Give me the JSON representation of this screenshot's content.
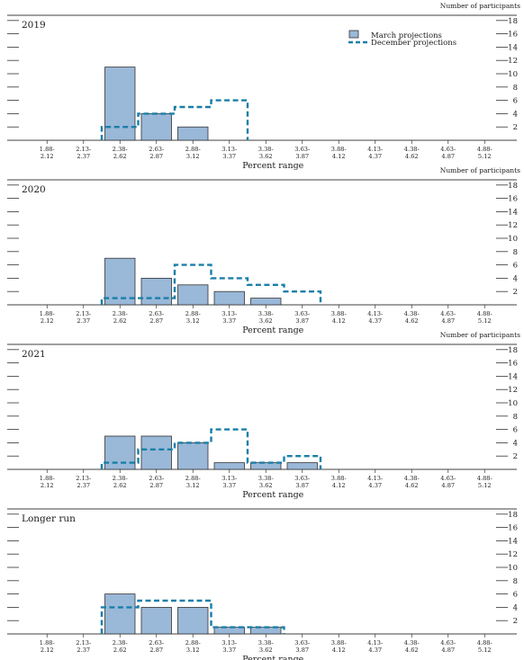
{
  "chart_data": [
    {
      "type": "bar",
      "title": "2019",
      "y_axis_title": "Number of participants",
      "xlabel": "Percent range",
      "categories": [
        "1.88-\n2.12",
        "2.13-\n2.37",
        "2.38-\n2.62",
        "2.63-\n2.87",
        "2.88-\n3.12",
        "3.13-\n3.37",
        "3.38-\n3.62",
        "3.63-\n3.87",
        "3.88-\n4.12",
        "4.13-\n4.37",
        "4.38-\n4.62",
        "4.63-\n4.87",
        "4.88-\n5.12"
      ],
      "series": [
        {
          "name": "March projections",
          "style": "bar",
          "values": [
            0,
            0,
            11,
            4,
            2,
            0,
            0,
            0,
            0,
            0,
            0,
            0,
            0
          ]
        },
        {
          "name": "December projections",
          "style": "dashed-step",
          "values": [
            0,
            0,
            2,
            4,
            5,
            6,
            0,
            0,
            0,
            0,
            0,
            0,
            0
          ]
        }
      ],
      "yticks": [
        2,
        4,
        6,
        8,
        10,
        12,
        14,
        16,
        18
      ],
      "ylim": [
        0,
        19
      ],
      "legend": "top-right",
      "colors": {
        "bar_fill": "#9ab8d8",
        "bar_stroke": "#333333",
        "dashed": "#1a7fa8"
      }
    },
    {
      "type": "bar",
      "title": "2020",
      "y_axis_title": "Number of participants",
      "xlabel": "Percent range",
      "categories": [
        "1.88-\n2.12",
        "2.13-\n2.37",
        "2.38-\n2.62",
        "2.63-\n2.87",
        "2.88-\n3.12",
        "3.13-\n3.37",
        "3.38-\n3.62",
        "3.63-\n3.87",
        "3.88-\n4.12",
        "4.13-\n4.37",
        "4.38-\n4.62",
        "4.63-\n4.87",
        "4.88-\n5.12"
      ],
      "series": [
        {
          "name": "March projections",
          "style": "bar",
          "values": [
            0,
            0,
            7,
            4,
            3,
            2,
            1,
            0,
            0,
            0,
            0,
            0,
            0
          ]
        },
        {
          "name": "December projections",
          "style": "dashed-step",
          "values": [
            0,
            0,
            1,
            1,
            6,
            4,
            3,
            2,
            0,
            0,
            0,
            0,
            0
          ]
        }
      ],
      "yticks": [
        2,
        4,
        6,
        8,
        10,
        12,
        14,
        16,
        18
      ],
      "ylim": [
        0,
        19
      ],
      "colors": {
        "bar_fill": "#9ab8d8",
        "bar_stroke": "#333333",
        "dashed": "#1a7fa8"
      }
    },
    {
      "type": "bar",
      "title": "2021",
      "y_axis_title": "Number of participants",
      "xlabel": "Percent range",
      "categories": [
        "1.88-\n2.12",
        "2.13-\n2.37",
        "2.38-\n2.62",
        "2.63-\n2.87",
        "2.88-\n3.12",
        "3.13-\n3.37",
        "3.38-\n3.62",
        "3.63-\n3.87",
        "3.88-\n4.12",
        "4.13-\n4.37",
        "4.38-\n4.62",
        "4.63-\n4.87",
        "4.88-\n5.12"
      ],
      "series": [
        {
          "name": "March projections",
          "style": "bar",
          "values": [
            0,
            0,
            5,
            5,
            4,
            1,
            1,
            1,
            0,
            0,
            0,
            0,
            0
          ]
        },
        {
          "name": "December projections",
          "style": "dashed-step",
          "values": [
            0,
            0,
            1,
            3,
            4,
            6,
            1,
            2,
            0,
            0,
            0,
            0,
            0
          ]
        }
      ],
      "yticks": [
        2,
        4,
        6,
        8,
        10,
        12,
        14,
        16,
        18
      ],
      "ylim": [
        0,
        19
      ],
      "colors": {
        "bar_fill": "#9ab8d8",
        "bar_stroke": "#333333",
        "dashed": "#1a7fa8"
      }
    },
    {
      "type": "bar",
      "title": "Longer run",
      "y_axis_title": "",
      "xlabel": "Percent range",
      "categories": [
        "1.88-\n2.12",
        "2.13-\n2.37",
        "2.38-\n2.62",
        "2.63-\n2.87",
        "2.88-\n3.12",
        "3.13-\n3.37",
        "3.38-\n3.62",
        "3.63-\n3.87",
        "3.88-\n4.12",
        "4.13-\n4.37",
        "4.38-\n4.62",
        "4.63-\n4.87",
        "4.88-\n5.12"
      ],
      "series": [
        {
          "name": "March projections",
          "style": "bar",
          "values": [
            0,
            0,
            6,
            4,
            4,
            1,
            1,
            0,
            0,
            0,
            0,
            0,
            0
          ]
        },
        {
          "name": "December projections",
          "style": "dashed-step",
          "values": [
            0,
            0,
            4,
            5,
            5,
            1,
            1,
            0,
            0,
            0,
            0,
            0,
            0
          ]
        }
      ],
      "yticks": [
        2,
        4,
        6,
        8,
        10,
        12,
        14,
        16,
        18
      ],
      "ylim": [
        0,
        19
      ],
      "colors": {
        "bar_fill": "#9ab8d8",
        "bar_stroke": "#333333",
        "dashed": "#1a7fa8"
      }
    }
  ]
}
